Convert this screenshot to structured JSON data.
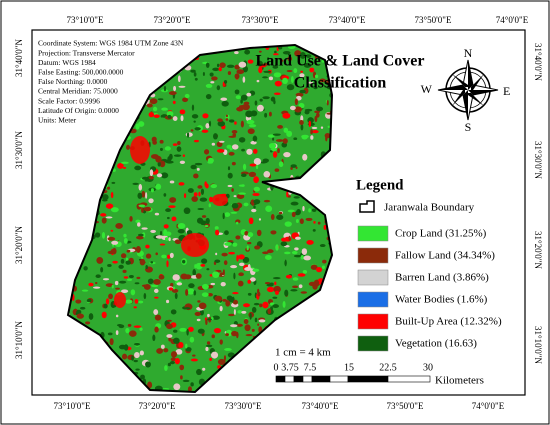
{
  "grid_labels": {
    "top": [
      "73°10'0\"E",
      "73°20'0\"E",
      "73°30'0\"E",
      "73°40'0\"E",
      "73°50'0\"E",
      "74°0'0\"E"
    ],
    "bottom": [
      "73°10'0\"E",
      "73°20'0\"E",
      "73°30'0\"E",
      "73°40'0\"E",
      "73°50'0\"E",
      "74°0'0\"E"
    ],
    "left": [
      "31°40'0\"N",
      "31°30'0\"N",
      "31°20'0\"N",
      "31°10'0\"N"
    ],
    "right": [
      "31°40'0\"N",
      "31°30'0\"N",
      "31°20'0\"N",
      "31°10'0\"N"
    ]
  },
  "info": [
    "Coordinate System: WGS 1984 UTM Zone 43N",
    "Projection: Transverse Mercator",
    "Datum: WGS 1984",
    "False Easting: 500,000.0000",
    "False Northing: 0.0000",
    "Central Meridian: 75.0000",
    "Scale Factor: 0.9996",
    "Latitude Of Origin: 0.0000",
    "Units: Meter"
  ],
  "title": [
    "Land Use & Land Cover",
    "Classification"
  ],
  "compass": {
    "n": "N",
    "s": "S",
    "e": "E",
    "w": "W"
  },
  "legend": {
    "title": "Legend",
    "boundary": "Jaranwala Boundary",
    "items": [
      {
        "label": "Crop Land (31.25%)",
        "color": "#33e633"
      },
      {
        "label": "Fallow Land (34.34%)",
        "color": "#8b2a0a"
      },
      {
        "label": "Barren Land (3.86%)",
        "color": "#d3d3d3"
      },
      {
        "label": "Water Bodies (1.6%)",
        "color": "#1a6ee6"
      },
      {
        "label": "Built-Up Area (12.32%)",
        "color": "#ff0000"
      },
      {
        "label": "Vegetation (16.63)",
        "color": "#0f5f0f"
      }
    ]
  },
  "scale": {
    "ratio": "1 cm = 4 km",
    "ticks": [
      "0",
      "3.75",
      "7.5",
      "15",
      "22.5",
      "30"
    ],
    "unit": "Kilometers"
  }
}
